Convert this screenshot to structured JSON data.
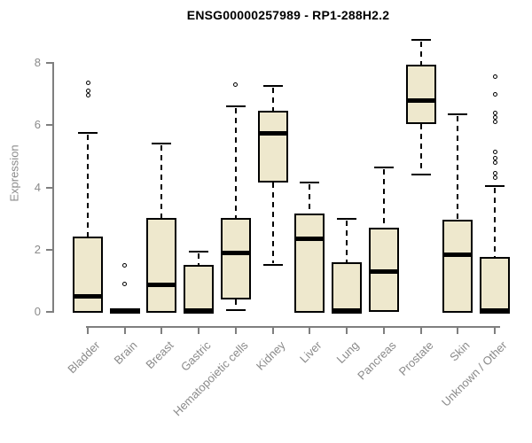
{
  "chart_data": {
    "type": "boxplot",
    "title": "ENSG00000257989 - RP1-288H2.2",
    "ylabel": "Expression",
    "xlabel": "",
    "ylim": [
      0,
      8.8
    ],
    "yticks": [
      0,
      2,
      4,
      6,
      8
    ],
    "grid": false,
    "legend": "none",
    "categories": [
      "Bladder",
      "Brain",
      "Breast",
      "Gastric",
      "Hematopoietic cells",
      "Kidney",
      "Liver",
      "Lung",
      "Pancreas",
      "Prostate",
      "Skin",
      "Unknown / Other"
    ],
    "series": [
      {
        "category": "Bladder",
        "whisker_low": 0.02,
        "q1": 0.02,
        "median": 0.5,
        "q3": 2.35,
        "whisker_high": 5.75,
        "outliers": [
          6.95,
          7.1,
          7.35
        ]
      },
      {
        "category": "Brain",
        "whisker_low": 0.0,
        "q1": 0.0,
        "median": 0.02,
        "q3": 0.05,
        "whisker_high": 0.05,
        "outliers": [
          0.9,
          1.5
        ]
      },
      {
        "category": "Breast",
        "whisker_low": 0.02,
        "q1": 0.02,
        "median": 0.88,
        "q3": 2.95,
        "whisker_high": 5.4,
        "outliers": []
      },
      {
        "category": "Gastric",
        "whisker_low": 0.0,
        "q1": 0.0,
        "median": 0.05,
        "q3": 1.45,
        "whisker_high": 1.95,
        "outliers": []
      },
      {
        "category": "Hematopoietic cells",
        "whisker_low": 0.05,
        "q1": 0.45,
        "median": 1.9,
        "q3": 2.95,
        "whisker_high": 6.6,
        "outliers": [
          7.3
        ]
      },
      {
        "category": "Kidney",
        "whisker_low": 1.5,
        "q1": 4.2,
        "median": 5.75,
        "q3": 6.4,
        "whisker_high": 7.25,
        "outliers": []
      },
      {
        "category": "Liver",
        "whisker_low": 0.02,
        "q1": 0.02,
        "median": 2.35,
        "q3": 3.1,
        "whisker_high": 4.15,
        "outliers": []
      },
      {
        "category": "Lung",
        "whisker_low": 0.0,
        "q1": 0.0,
        "median": 0.05,
        "q3": 1.55,
        "whisker_high": 3.0,
        "outliers": []
      },
      {
        "category": "Pancreas",
        "whisker_low": 0.05,
        "q1": 0.05,
        "median": 1.3,
        "q3": 2.65,
        "whisker_high": 4.65,
        "outliers": []
      },
      {
        "category": "Prostate",
        "whisker_low": 4.4,
        "q1": 6.1,
        "median": 6.8,
        "q3": 7.9,
        "whisker_high": 8.75,
        "outliers": []
      },
      {
        "category": "Skin",
        "whisker_low": 0.02,
        "q1": 0.02,
        "median": 1.85,
        "q3": 2.9,
        "whisker_high": 6.35,
        "outliers": []
      },
      {
        "category": "Unknown / Other",
        "whisker_low": 0.0,
        "q1": 0.0,
        "median": 0.05,
        "q3": 1.7,
        "whisker_high": 4.05,
        "outliers": [
          4.3,
          4.45,
          4.8,
          4.95,
          5.15,
          6.1,
          6.25,
          6.4,
          7.0,
          7.55
        ]
      }
    ],
    "colors": {
      "box_fill": "#eee8cd",
      "box_border": "#000000",
      "median": "#000000",
      "whisker": "#000000",
      "axis": "#7f7f7f",
      "tick_text": "#8a8a8a",
      "title_text": "#000000",
      "background": "#ffffff"
    }
  }
}
